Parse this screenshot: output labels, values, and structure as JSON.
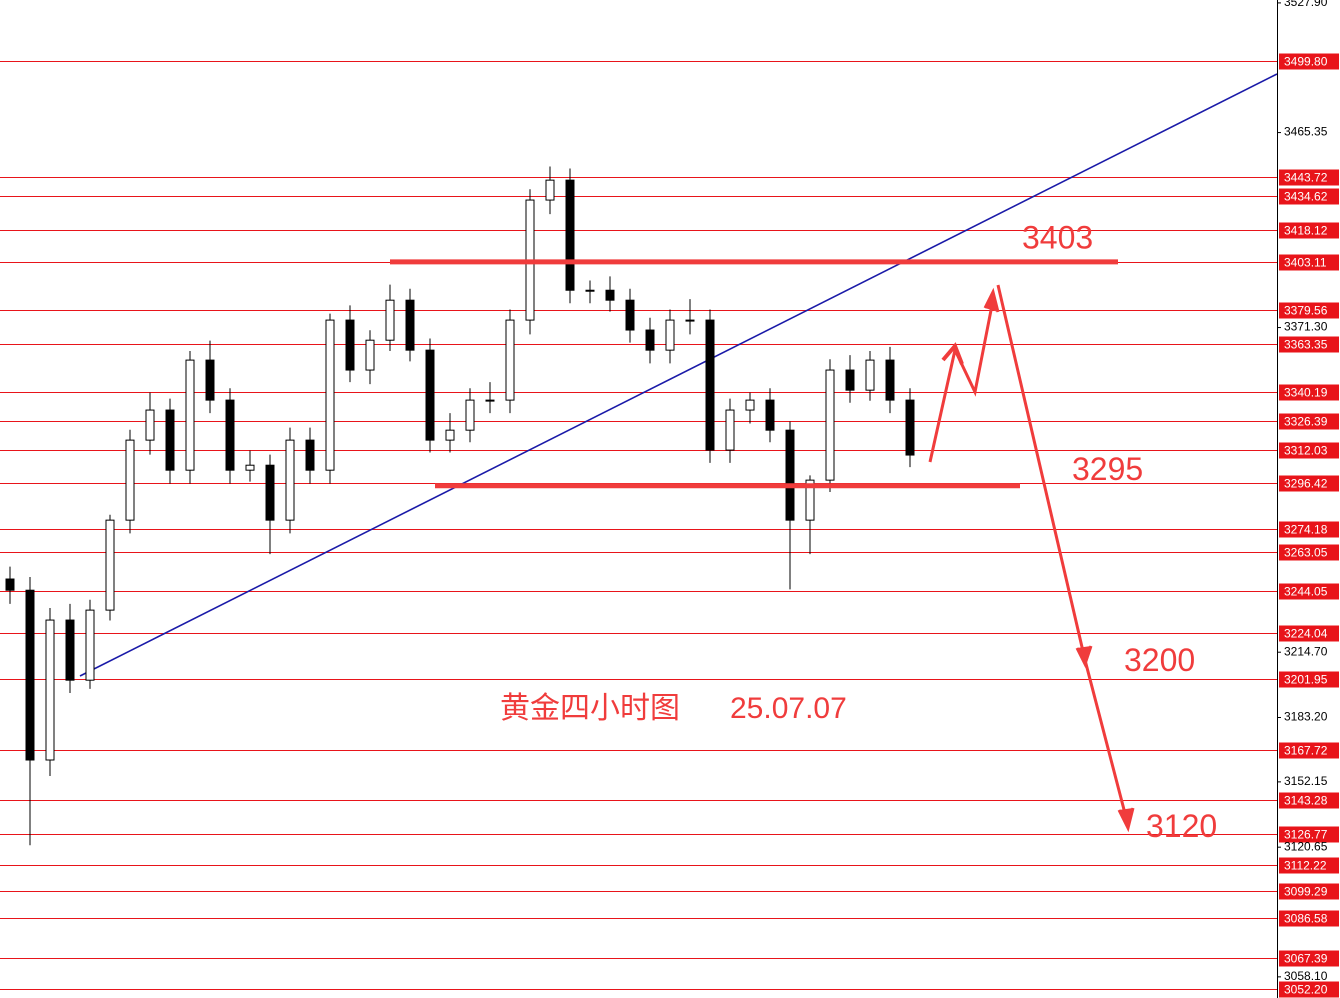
{
  "chart_data": {
    "type": "candlestick",
    "ylim": [
      3047.9,
      3529.3
    ],
    "series": [
      {
        "open": [
          3250.0,
          3244.6,
          3162.7,
          3230.2,
          3201.2,
          3235.0,
          3278.4,
          3317.0,
          3331.5,
          3302.5,
          3355.6,
          3336.3,
          3302.5,
          3304.9,
          3278.4,
          3317.0,
          3302.5,
          3374.9,
          3350.8,
          3365.2,
          3384.5,
          3360.4,
          3317.0,
          3321.8,
          3336.3,
          3336.3,
          3374.9,
          3432.8,
          3442.4,
          3389.3,
          3389.3,
          3384.5,
          3370.1,
          3360.4,
          3374.9,
          3374.9,
          3312.2,
          3331.5,
          3336.3,
          3321.8,
          3278.4,
          3297.7,
          3350.8,
          3341.1,
          3355.6,
          3336.3
        ],
        "high": [
          3256.0,
          3251.0,
          3236.0,
          3238.0,
          3240.0,
          3281.0,
          3322.0,
          3340.0,
          3337.0,
          3360.0,
          3365.0,
          3342.0,
          3312.0,
          3310.0,
          3323.0,
          3323.0,
          3378.0,
          3382.0,
          3370.0,
          3392.0,
          3390.0,
          3366.0,
          3330.0,
          3342.0,
          3345.0,
          3380.0,
          3438.0,
          3449.0,
          3448.0,
          3394.0,
          3396.0,
          3390.0,
          3376.0,
          3380.0,
          3385.0,
          3380.0,
          3337.0,
          3340.0,
          3342.0,
          3326.0,
          3300.0,
          3356.0,
          3358.0,
          3360.0,
          3362.0,
          3342.0
        ],
        "low": [
          3238.0,
          3121.6,
          3155.0,
          3195.0,
          3197.0,
          3230.0,
          3272.0,
          3310.0,
          3296.0,
          3296.0,
          3330.0,
          3296.0,
          3297.0,
          3262.0,
          3272.0,
          3296.0,
          3296.0,
          3345.0,
          3344.0,
          3360.0,
          3355.0,
          3311.0,
          3311.0,
          3316.0,
          3330.0,
          3330.0,
          3368.0,
          3426.0,
          3383.0,
          3383.0,
          3379.0,
          3364.0,
          3354.0,
          3354.0,
          3368.0,
          3306.0,
          3306.0,
          3325.0,
          3316.0,
          3245.0,
          3262.0,
          3292.0,
          3335.0,
          3336.0,
          3330.0,
          3304.0
        ],
        "close": [
          3244.6,
          3162.7,
          3230.2,
          3201.2,
          3235.0,
          3278.4,
          3317.0,
          3331.5,
          3302.5,
          3355.6,
          3336.3,
          3302.5,
          3304.9,
          3278.4,
          3317.0,
          3302.5,
          3374.9,
          3350.8,
          3365.2,
          3384.5,
          3360.4,
          3317.0,
          3321.8,
          3336.3,
          3336.3,
          3374.9,
          3432.8,
          3442.4,
          3389.3,
          3389.3,
          3384.5,
          3370.1,
          3360.4,
          3374.9,
          3374.9,
          3312.2,
          3331.5,
          3336.3,
          3321.8,
          3278.4,
          3297.7,
          3350.8,
          3341.1,
          3355.6,
          3336.3,
          3309.8
        ]
      }
    ],
    "yticks": [
      {
        "value": 3527.9,
        "label": "3527.90"
      },
      {
        "value": 3465.35,
        "label": "3465.35"
      },
      {
        "value": 3371.3,
        "label": "3371.30"
      },
      {
        "value": 3214.7,
        "label": "3214.70"
      },
      {
        "value": 3183.2,
        "label": "3183.20"
      },
      {
        "value": 3152.15,
        "label": "3152.15"
      },
      {
        "value": 3120.65,
        "label": "3120.65"
      },
      {
        "value": 3058.1,
        "label": "3058.10"
      }
    ],
    "levels": [
      {
        "value": 3499.8,
        "label": "3499.80"
      },
      {
        "value": 3443.72,
        "label": "3443.72"
      },
      {
        "value": 3434.62,
        "label": "3434.62"
      },
      {
        "value": 3418.12,
        "label": "3418.12"
      },
      {
        "value": 3403.11,
        "label": "3403.11"
      },
      {
        "value": 3379.56,
        "label": "3379.56"
      },
      {
        "value": 3363.35,
        "label": "3363.35"
      },
      {
        "value": 3340.19,
        "label": "3340.19"
      },
      {
        "value": 3326.39,
        "label": "3326.39"
      },
      {
        "value": 3312.03,
        "label": "3312.03"
      },
      {
        "value": 3296.42,
        "label": "3296.42"
      },
      {
        "value": 3274.18,
        "label": "3274.18"
      },
      {
        "value": 3263.05,
        "label": "3263.05"
      },
      {
        "value": 3244.05,
        "label": "3244.05"
      },
      {
        "value": 3224.04,
        "label": "3224.04"
      },
      {
        "value": 3201.95,
        "label": "3201.95"
      },
      {
        "value": 3167.72,
        "label": "3167.72"
      },
      {
        "value": 3143.28,
        "label": "3143.28"
      },
      {
        "value": 3126.77,
        "label": "3126.77"
      },
      {
        "value": 3112.22,
        "label": "3112.22"
      },
      {
        "value": 3099.29,
        "label": "3099.29"
      },
      {
        "value": 3086.58,
        "label": "3086.58"
      },
      {
        "value": 3067.39,
        "label": "3067.39"
      },
      {
        "value": 3052.2,
        "label": "3052.20"
      }
    ],
    "key_levels": [
      3403,
      3295
    ],
    "targets": [
      3200,
      3120
    ],
    "title": "黄金四小时图",
    "date": "25.07.07"
  }
}
